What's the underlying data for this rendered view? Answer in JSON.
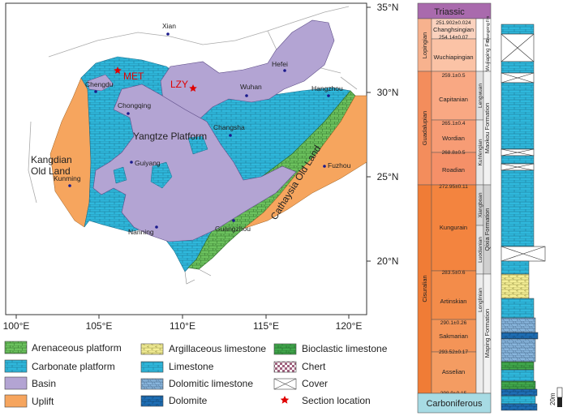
{
  "map": {
    "lat_labels": [
      "35°N",
      "30°N",
      "25°N",
      "20°N"
    ],
    "lon_labels": [
      "100°E",
      "105°E",
      "110°E",
      "115°E",
      "120°E"
    ],
    "cities": [
      "Xian",
      "Hefei",
      "Chengdu",
      "Wuhan",
      "Hangzhou",
      "Chongqing",
      "Changsha",
      "Guiyang",
      "Fuzhou",
      "Kunming",
      "Nanning",
      "Guangzhou"
    ],
    "sections": [
      "MET",
      "LZY"
    ],
    "region_labels": {
      "yangtze": "Yangtze Platform",
      "kangdian_1": "Kangdian",
      "kangdian_2": "Old Land",
      "cathaysia": "Cathaysia Old Land"
    },
    "colors": {
      "carbonate": "#2fb8dc",
      "basin": "#b3a4d3",
      "uplift": "#f6a55e",
      "arenaceous": "#6cc15e",
      "section": "#e00000"
    }
  },
  "legend": {
    "items": [
      "Arenaceous platform",
      "Carbonate platform",
      "Basin",
      "Uplift",
      "Argillaceous limestone",
      "Limestone",
      "Dolomitic limestone",
      "Dolomite",
      "Bioclastic limestone",
      "Chert",
      "Cover",
      "Section location"
    ]
  },
  "strat": {
    "triassic": "Triassic",
    "carboniferous": "Carboniferous",
    "series": [
      "Lopingian",
      "Guadalupian",
      "Cisuralian"
    ],
    "stages": [
      "Changhsingian",
      "Wuchiapingian",
      "Capitanian",
      "Wordian",
      "Roadian",
      "Kungurain",
      "Artinskian",
      "Sakmarian",
      "Asselian"
    ],
    "ages": [
      "251.902±0.024",
      "254.14±0.07",
      "259.1±0.5",
      "265.1±0.4",
      "268.8±0.5",
      "272.95±0.11",
      "283.5±0.6",
      "290.1±0.26",
      "293.52±0.17",
      "298.9±0.15"
    ],
    "formations": [
      "Changxing Fm",
      "Wujiaping Fm",
      "Maokou Formation",
      "Qixia Formation",
      "Maping Formation"
    ],
    "members": [
      "Lengwuan",
      "Kuhfengian",
      "Xiangboan",
      "Luodianian",
      "Longlinian"
    ],
    "scale_label": "20m"
  }
}
